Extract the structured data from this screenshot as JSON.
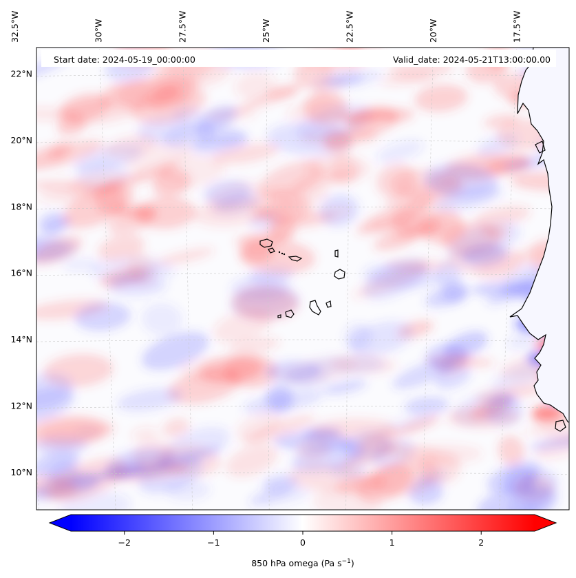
{
  "map": {
    "start_label": "Start date: 2024-05-19_00:00:00",
    "valid_label": "Valid_date: 2024-05-21T13:00:00.00",
    "lon_labels": [
      {
        "text": "32.5°W",
        "lon": -32.5
      },
      {
        "text": "30°W",
        "lon": -30
      },
      {
        "text": "27.5°W",
        "lon": -27.5
      },
      {
        "text": "25°W",
        "lon": -25
      },
      {
        "text": "22.5°W",
        "lon": -22.5
      },
      {
        "text": "20°W",
        "lon": -20
      },
      {
        "text": "17.5°W",
        "lon": -17.5
      }
    ],
    "lat_labels": [
      {
        "text": "22°N",
        "lat": 22
      },
      {
        "text": "20°N",
        "lat": 20
      },
      {
        "text": "18°N",
        "lat": 18
      },
      {
        "text": "16°N",
        "lat": 16
      },
      {
        "text": "14°N",
        "lat": 14
      },
      {
        "text": "12°N",
        "lat": 12
      },
      {
        "text": "10°N",
        "lat": 10
      }
    ],
    "colors": {
      "negative": "#0000ff",
      "neutral": "#ffffff",
      "positive": "#ff0000",
      "coast": "#000000",
      "grid": "#bbbbbb"
    }
  },
  "colorbar": {
    "label": "850 hPa omega (Pa s",
    "label_sup": "−1",
    "label_close": ")",
    "min": -2.6,
    "max": 2.6,
    "ticks": [
      {
        "text": "−2",
        "value": -2
      },
      {
        "text": "−1",
        "value": -1
      },
      {
        "text": "0",
        "value": 0
      },
      {
        "text": "1",
        "value": 1
      },
      {
        "text": "2",
        "value": 2
      }
    ]
  }
}
